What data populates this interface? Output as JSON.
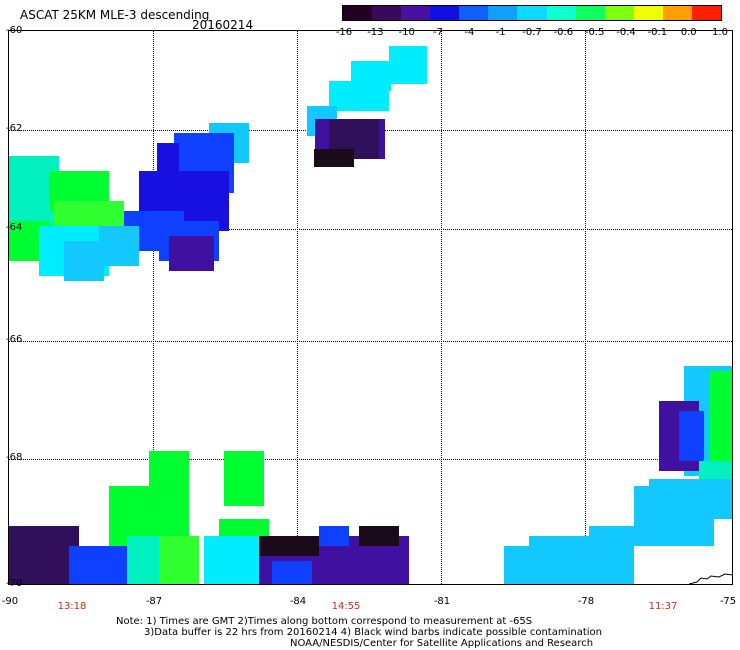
{
  "header": {
    "title": "ASCAT 25KM MLE-3 descending",
    "date": "20160214"
  },
  "colorbar": {
    "labels": [
      "-16",
      "-13",
      "-10",
      "-7",
      "-4",
      "-1",
      "-0.7",
      "-0.6",
      "-0.5",
      "-0.4",
      "-0.1",
      "0.0",
      "1.0"
    ],
    "colors": [
      "#220022",
      "#3a0a5a",
      "#4a10a0",
      "#1010e0",
      "#1060ff",
      "#10a0ff",
      "#10d8ff",
      "#10ffd0",
      "#10ff60",
      "#80ff10",
      "#f0ff00",
      "#ffa000",
      "#ff2000"
    ]
  },
  "axes": {
    "lat_labels": [
      "-60",
      "-62",
      "-64",
      "-66",
      "-68",
      "-70"
    ],
    "lon_labels": [
      "-90",
      "-87",
      "-84",
      "-81",
      "-78",
      "-75"
    ],
    "time_labels": [
      "13:18",
      "14:55",
      "11:37"
    ]
  },
  "notes": {
    "line1": "Note: 1) Times are GMT 2)Times along bottom correspond to measurement at -65S",
    "line2": "3)Data buffer is 22 hrs from 20160214 4) Black wind barbs indicate possible contamination",
    "line3": "NOAA/NESDIS/Center for Satellite Applications and Research"
  },
  "palette": {
    "cyan": "#00ecff",
    "sky": "#12c8ff",
    "teal": "#00f0c0",
    "green": "#00ff30",
    "lime": "#30ff30",
    "blue": "#1040ff",
    "deepblue": "#1810e0",
    "purple": "#4010a0",
    "darkpurple": "#30105a",
    "black": "#1a0a1a"
  }
}
